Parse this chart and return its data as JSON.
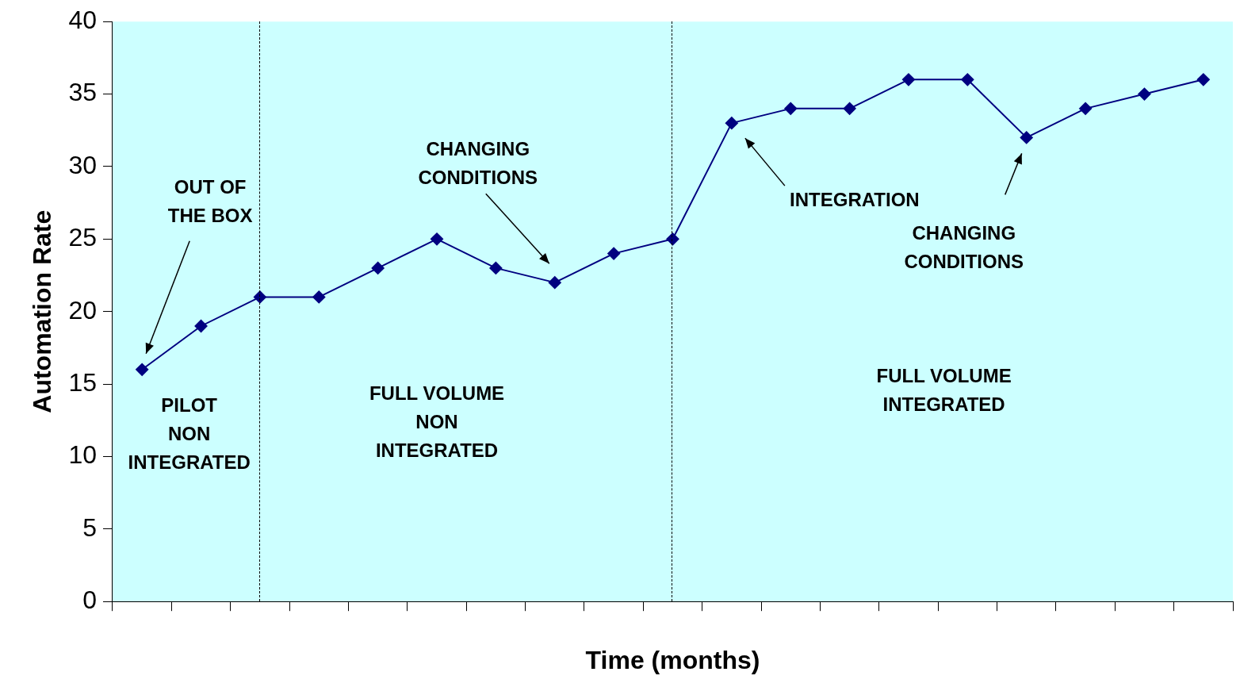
{
  "chart_data": {
    "type": "line",
    "xlabel": "Time (months)",
    "ylabel": "Automation Rate",
    "categories": [
      null,
      null,
      null,
      null,
      null,
      null,
      null,
      null,
      null,
      null,
      null,
      null,
      null,
      null,
      null,
      null,
      null,
      null,
      null
    ],
    "series": [
      {
        "color": "#000080",
        "values": [
          16,
          19,
          21,
          21,
          23,
          25,
          23,
          22,
          24,
          25,
          33,
          34,
          34,
          36,
          36,
          32,
          34,
          35,
          36
        ]
      }
    ],
    "ylim": [
      0,
      40
    ],
    "yticks": [
      0,
      5,
      10,
      15,
      20,
      25,
      30,
      35,
      40
    ],
    "grid": false,
    "legend": false,
    "marker": "diamond",
    "line_style": "solid",
    "annotations": [
      "OUT OF\nTHE BOX",
      "CHANGING\nCONDITIONS",
      "INTEGRATION",
      "CHANGING\nCONDITIONS",
      "PILOT\nNON\nINTEGRATED",
      "FULL VOLUME\nNON\nINTEGRATED",
      "FULL VOLUME\nINTEGRATED"
    ]
  }
}
